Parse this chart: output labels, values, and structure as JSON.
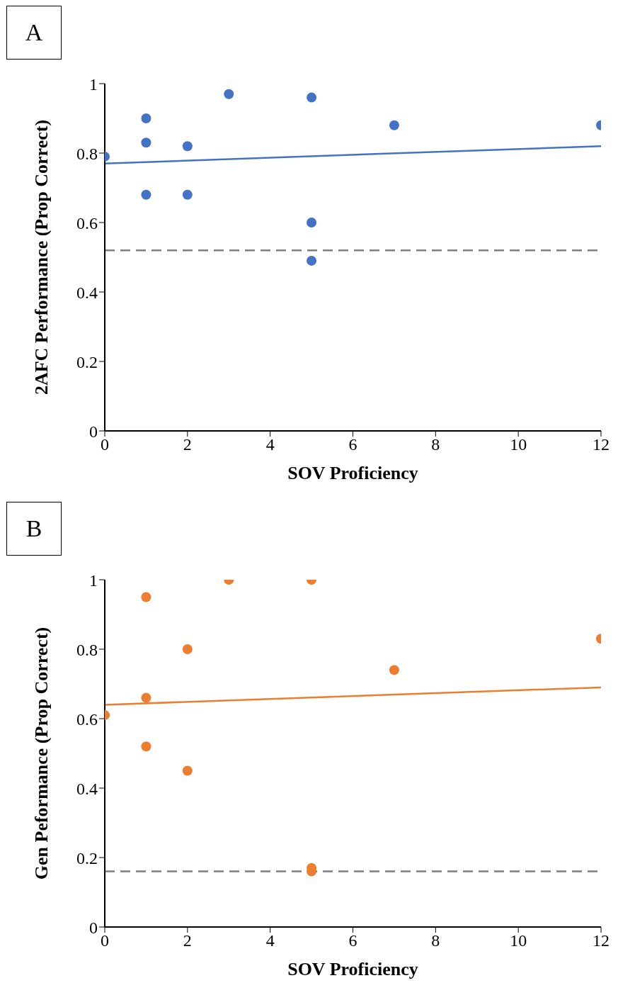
{
  "chart_data": [
    {
      "type": "scatter",
      "title": "A",
      "xlabel": "SOV Proficiency",
      "ylabel": "2AFC Performance (Prop Correct)",
      "xlim": [
        0,
        12
      ],
      "xticks": [
        0,
        2,
        4,
        6,
        8,
        10,
        12
      ],
      "ylim": [
        0,
        1
      ],
      "yticks": [
        0,
        0.2,
        0.4,
        0.6,
        0.8,
        1
      ],
      "grid": false,
      "series": [
        {
          "marker": "circle",
          "color": "#4472c4",
          "x": [
            0,
            1,
            1,
            1,
            2,
            2,
            3,
            5,
            5,
            5,
            7,
            12
          ],
          "values": [
            0.79,
            0.9,
            0.83,
            0.68,
            0.82,
            0.68,
            0.97,
            0.96,
            0.6,
            0.49,
            0.88,
            0.88
          ]
        },
        {
          "type": "line",
          "marker": "none",
          "color": "#4472c4",
          "x": [
            0,
            12
          ],
          "values": [
            0.77,
            0.82
          ]
        }
      ],
      "ref_lines": [
        {
          "axis": "y",
          "value": 0.52,
          "color": "#7f7f7f",
          "line_style": "dashed"
        }
      ]
    },
    {
      "type": "scatter",
      "title": "B",
      "xlabel": "SOV Proficiency",
      "ylabel": "Gen Peformance (Prop Correct)",
      "xlim": [
        0,
        12
      ],
      "xticks": [
        0,
        2,
        4,
        6,
        8,
        10,
        12
      ],
      "ylim": [
        0,
        1
      ],
      "yticks": [
        0,
        0.2,
        0.4,
        0.6,
        0.8,
        1
      ],
      "grid": false,
      "series": [
        {
          "marker": "circle",
          "color": "#ed7d31",
          "x": [
            0,
            1,
            1,
            1,
            2,
            2,
            3,
            5,
            5,
            5,
            7,
            12
          ],
          "values": [
            0.61,
            0.95,
            0.66,
            0.52,
            0.8,
            0.45,
            1,
            1,
            0.17,
            0.16,
            0.74,
            0.83
          ]
        },
        {
          "type": "line",
          "marker": "none",
          "color": "#ed7d31",
          "x": [
            0,
            12
          ],
          "values": [
            0.64,
            0.69
          ]
        }
      ],
      "ref_lines": [
        {
          "axis": "y",
          "value": 0.16,
          "color": "#7f7f7f",
          "line_style": "dashed"
        }
      ]
    }
  ]
}
